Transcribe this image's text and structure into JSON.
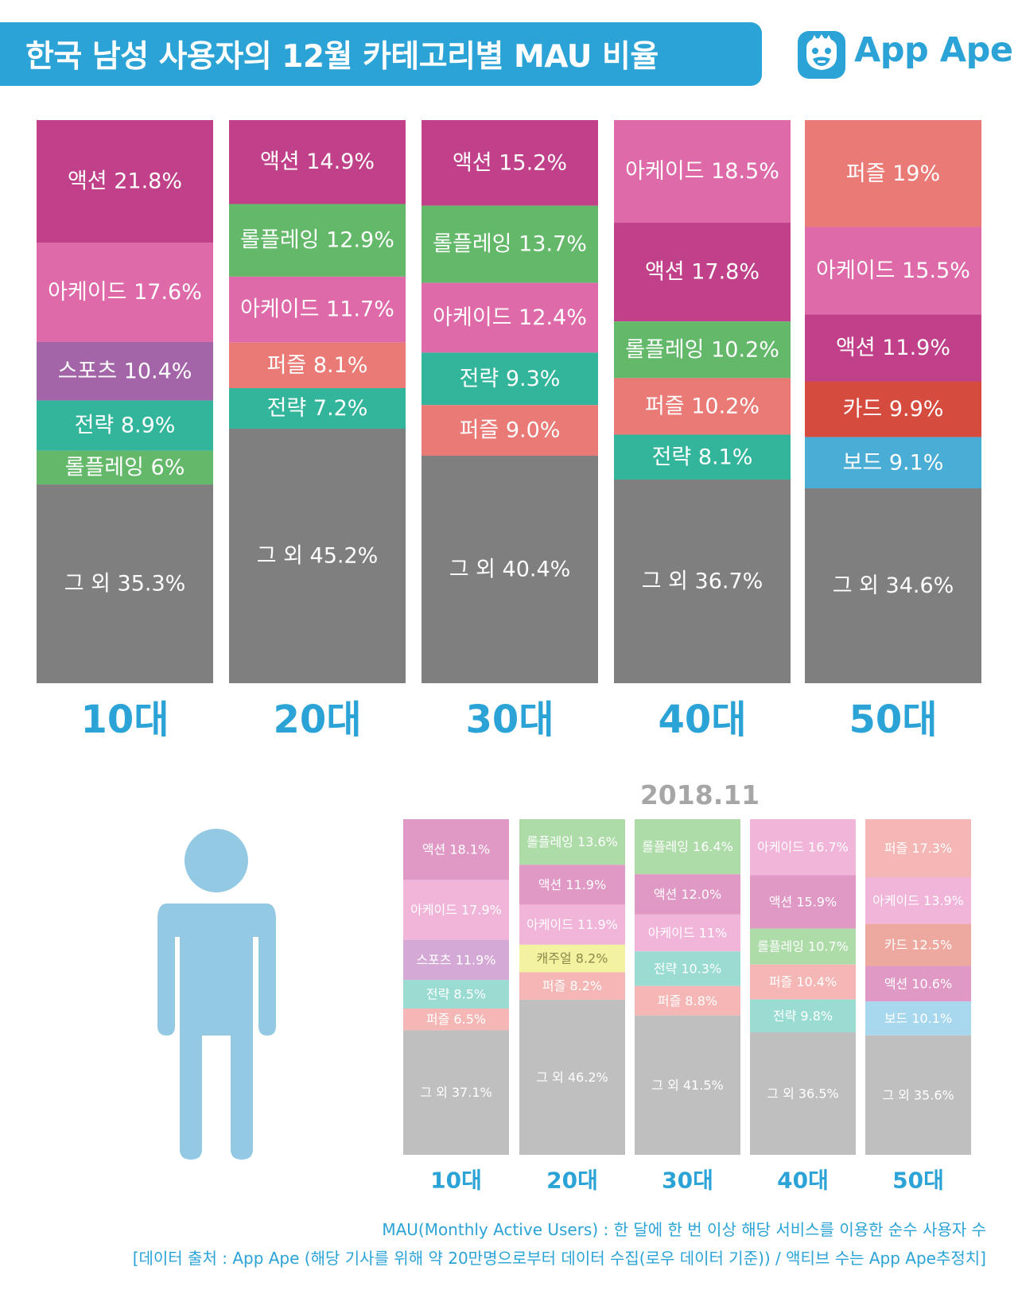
{
  "title": "한국 남성 사용자의 12월 카테고리별 MAU 비율",
  "brand": {
    "name": "App Ape",
    "color": "#2ba3d6",
    "icon": "ape-face-icon"
  },
  "colors": {
    "액션": "#c0408a",
    "아케이드": "#de6aaa",
    "스포츠": "#a364a8",
    "전략": "#32b59b",
    "롤플레잉": "#63b86a",
    "퍼즐": "#e97a76",
    "카드": "#d54b3e",
    "보드": "#4aadd6",
    "그 외": "#7f7f7f",
    "캐주얼": "#f3f2a0"
  },
  "colors_prev": {
    "액션": "#e098c4",
    "아케이드": "#f0b5d8",
    "스포츠": "#d4a9d5",
    "전략": "#9adcd2",
    "롤플레잉": "#aedca9",
    "퍼즐": "#f4b7b5",
    "카드": "#eda89f",
    "보드": "#a8d8ee",
    "그 외": "#bfbfbf",
    "캐주얼": "#f3f2a0"
  },
  "chart_data": [
    {
      "type": "bar",
      "stacked": true,
      "title": "한국 남성 사용자의 12월 카테고리별 MAU 비율",
      "categories": [
        "10대",
        "20대",
        "30대",
        "40대",
        "50대"
      ],
      "ylim": [
        0,
        100
      ],
      "stacks": [
        {
          "group": "10대",
          "segments": [
            {
              "label": "액션 21.8%",
              "category": "액션",
              "value": 21.8
            },
            {
              "label": "아케이드 17.6%",
              "category": "아케이드",
              "value": 17.6
            },
            {
              "label": "스포츠 10.4%",
              "category": "스포츠",
              "value": 10.4
            },
            {
              "label": "전략 8.9%",
              "category": "전략",
              "value": 8.9
            },
            {
              "label": "롤플레잉 6%",
              "category": "롤플레잉",
              "value": 6.0
            },
            {
              "label": "그 외 35.3%",
              "category": "그 외",
              "value": 35.3
            }
          ]
        },
        {
          "group": "20대",
          "segments": [
            {
              "label": "액션 14.9%",
              "category": "액션",
              "value": 14.9
            },
            {
              "label": "롤플레잉 12.9%",
              "category": "롤플레잉",
              "value": 12.9
            },
            {
              "label": "아케이드 11.7%",
              "category": "아케이드",
              "value": 11.7
            },
            {
              "label": "퍼즐 8.1%",
              "category": "퍼즐",
              "value": 8.1
            },
            {
              "label": "전략 7.2%",
              "category": "전략",
              "value": 7.2
            },
            {
              "label": "그 외 45.2%",
              "category": "그 외",
              "value": 45.2
            }
          ]
        },
        {
          "group": "30대",
          "segments": [
            {
              "label": "액션 15.2%",
              "category": "액션",
              "value": 15.2
            },
            {
              "label": "롤플레잉 13.7%",
              "category": "롤플레잉",
              "value": 13.7
            },
            {
              "label": "아케이드 12.4%",
              "category": "아케이드",
              "value": 12.4
            },
            {
              "label": "전략 9.3%",
              "category": "전략",
              "value": 9.3
            },
            {
              "label": "퍼즐 9.0%",
              "category": "퍼즐",
              "value": 9.0
            },
            {
              "label": "그 외 40.4%",
              "category": "그 외",
              "value": 40.4
            }
          ]
        },
        {
          "group": "40대",
          "segments": [
            {
              "label": "아케이드 18.5%",
              "category": "아케이드",
              "value": 18.5
            },
            {
              "label": "액션 17.8%",
              "category": "액션",
              "value": 17.8
            },
            {
              "label": "롤플레잉 10.2%",
              "category": "롤플레잉",
              "value": 10.2
            },
            {
              "label": "퍼즐 10.2%",
              "category": "퍼즐",
              "value": 10.2
            },
            {
              "label": "전략 8.1%",
              "category": "전략",
              "value": 8.1
            },
            {
              "label": "그 외 36.7%",
              "category": "그 외",
              "value": 36.7
            }
          ]
        },
        {
          "group": "50대",
          "segments": [
            {
              "label": "퍼즐 19%",
              "category": "퍼즐",
              "value": 19.0
            },
            {
              "label": "아케이드 15.5%",
              "category": "아케이드",
              "value": 15.5
            },
            {
              "label": "액션 11.9%",
              "category": "액션",
              "value": 11.9
            },
            {
              "label": "카드 9.9%",
              "category": "카드",
              "value": 9.9
            },
            {
              "label": "보드 9.1%",
              "category": "보드",
              "value": 9.1
            },
            {
              "label": "그 외 34.6%",
              "category": "그 외",
              "value": 34.6
            }
          ]
        }
      ]
    },
    {
      "type": "bar",
      "stacked": true,
      "title": "2018.11",
      "categories": [
        "10대",
        "20대",
        "30대",
        "40대",
        "50대"
      ],
      "ylim": [
        0,
        100
      ],
      "stacks": [
        {
          "group": "10대",
          "segments": [
            {
              "label": "액션 18.1%",
              "category": "액션",
              "value": 18.1
            },
            {
              "label": "아케이드 17.9%",
              "category": "아케이드",
              "value": 17.9
            },
            {
              "label": "스포츠 11.9%",
              "category": "스포츠",
              "value": 11.9
            },
            {
              "label": "전략 8.5%",
              "category": "전략",
              "value": 8.5
            },
            {
              "label": "퍼즐 6.5%",
              "category": "퍼즐",
              "value": 6.5
            },
            {
              "label": "그 외 37.1%",
              "category": "그 외",
              "value": 37.1
            }
          ]
        },
        {
          "group": "20대",
          "segments": [
            {
              "label": "롤플레잉 13.6%",
              "category": "롤플레잉",
              "value": 13.6
            },
            {
              "label": "액션 11.9%",
              "category": "액션",
              "value": 11.9
            },
            {
              "label": "아케이드 11.9%",
              "category": "아케이드",
              "value": 11.9
            },
            {
              "label": "캐주얼 8.2%",
              "category": "캐주얼",
              "value": 8.2
            },
            {
              "label": "퍼즐 8.2%",
              "category": "퍼즐",
              "value": 8.2
            },
            {
              "label": "그 외 46.2%",
              "category": "그 외",
              "value": 46.2
            }
          ]
        },
        {
          "group": "30대",
          "segments": [
            {
              "label": "롤플레잉 16.4%",
              "category": "롤플레잉",
              "value": 16.4
            },
            {
              "label": "액션 12.0%",
              "category": "액션",
              "value": 12.0
            },
            {
              "label": "아케이드 11%",
              "category": "아케이드",
              "value": 11.0
            },
            {
              "label": "전략 10.3%",
              "category": "전략",
              "value": 10.3
            },
            {
              "label": "퍼즐 8.8%",
              "category": "퍼즐",
              "value": 8.8
            },
            {
              "label": "그 외 41.5%",
              "category": "그 외",
              "value": 41.5
            }
          ]
        },
        {
          "group": "40대",
          "segments": [
            {
              "label": "아케이드 16.7%",
              "category": "아케이드",
              "value": 16.7
            },
            {
              "label": "액션 15.9%",
              "category": "액션",
              "value": 15.9
            },
            {
              "label": "롤플레잉 10.7%",
              "category": "롤플레잉",
              "value": 10.7
            },
            {
              "label": "퍼즐 10.4%",
              "category": "퍼즐",
              "value": 10.4
            },
            {
              "label": "전략 9.8%",
              "category": "전략",
              "value": 9.8
            },
            {
              "label": "그 외 36.5%",
              "category": "그 외",
              "value": 36.5
            }
          ]
        },
        {
          "group": "50대",
          "segments": [
            {
              "label": "퍼즐 17.3%",
              "category": "퍼즐",
              "value": 17.3
            },
            {
              "label": "아케이드 13.9%",
              "category": "아케이드",
              "value": 13.9
            },
            {
              "label": "카드 12.5%",
              "category": "카드",
              "value": 12.5
            },
            {
              "label": "액션 10.6%",
              "category": "액션",
              "value": 10.6
            },
            {
              "label": "보드 10.1%",
              "category": "보드",
              "value": 10.1
            },
            {
              "label": "그 외 35.6%",
              "category": "그 외",
              "value": 35.6
            }
          ]
        }
      ]
    }
  ],
  "illustration": {
    "icon": "male-person-icon",
    "color": "#93c9e3"
  },
  "footnotes": {
    "definition": "MAU(Monthly Active Users) : 한 달에 한 번 이상 해당 서비스를 이용한 순수 사용자 수",
    "source": "[데이터 출처 : App Ape (해당 기사를 위해 약 20만명으로부터 데이터 수집(로우 데이터 기준)) / 액티브 수는 App Ape추정치]"
  }
}
